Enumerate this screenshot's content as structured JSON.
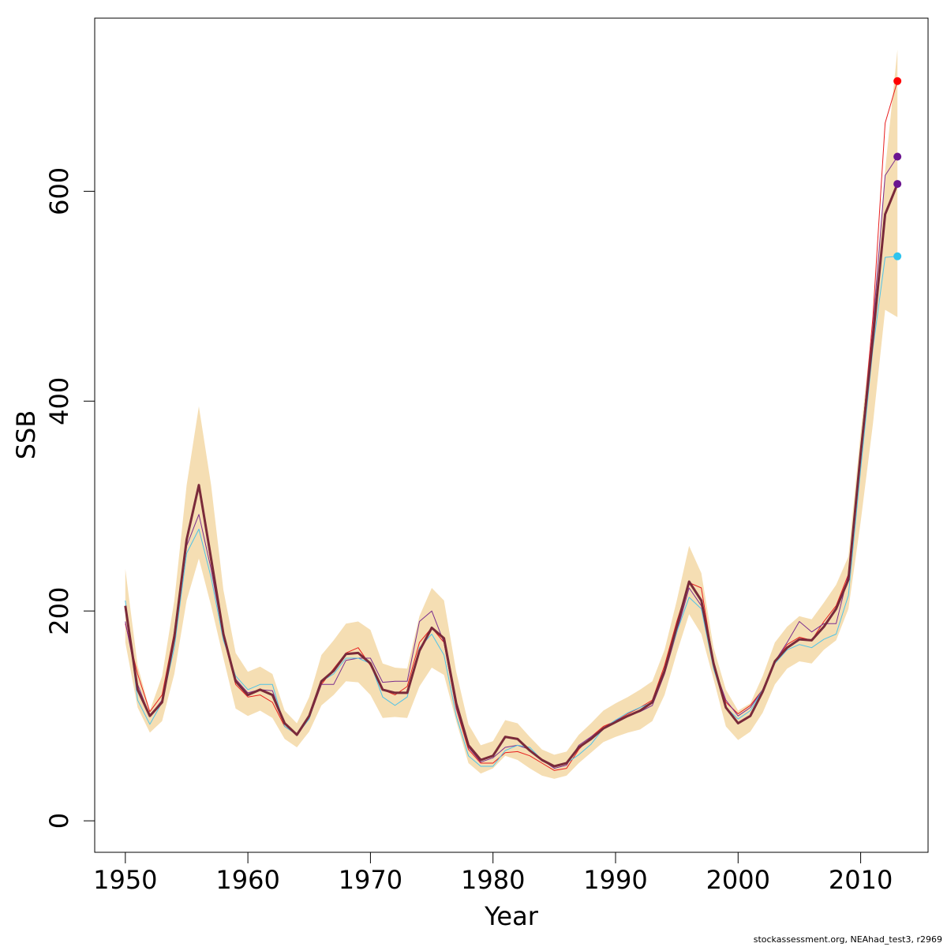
{
  "chart_data": {
    "type": "line",
    "xlabel": "Year",
    "ylabel": "SSB",
    "xlim": [
      1947.5,
      2015.5
    ],
    "ylim": [
      -30,
      765
    ],
    "x_ticks": [
      1950,
      1960,
      1970,
      1980,
      1990,
      2000,
      2010
    ],
    "y_ticks": [
      0,
      200,
      400,
      600
    ],
    "band_color": "#F5DEB3",
    "x": [
      1950,
      1951,
      1952,
      1953,
      1954,
      1955,
      1956,
      1957,
      1958,
      1959,
      1960,
      1961,
      1962,
      1963,
      1964,
      1965,
      1966,
      1967,
      1968,
      1969,
      1970,
      1971,
      1972,
      1973,
      1974,
      1975,
      1976,
      1977,
      1978,
      1979,
      1980,
      1981,
      1982,
      1983,
      1984,
      1985,
      1986,
      1987,
      1988,
      1989,
      1990,
      1991,
      1992,
      1993,
      1994,
      1995,
      1996,
      1997,
      1998,
      1999,
      2000,
      2001,
      2002,
      2003,
      2004,
      2005,
      2006,
      2007,
      2008,
      2009,
      2010,
      2011,
      2012,
      2013
    ],
    "band": {
      "lower": [
        170,
        108,
        84,
        95,
        140,
        210,
        250,
        205,
        155,
        107,
        100,
        105,
        98,
        78,
        70,
        85,
        110,
        120,
        133,
        132,
        120,
        98,
        99,
        98,
        128,
        146,
        139,
        95,
        55,
        45,
        50,
        62,
        58,
        50,
        43,
        40,
        43,
        55,
        65,
        75,
        80,
        84,
        87,
        95,
        120,
        160,
        197,
        178,
        135,
        90,
        77,
        85,
        103,
        130,
        145,
        152,
        150,
        163,
        172,
        202,
        285,
        378,
        487,
        480
      ],
      "upper": [
        240,
        148,
        105,
        138,
        210,
        320,
        395,
        320,
        220,
        160,
        142,
        147,
        140,
        105,
        93,
        118,
        158,
        172,
        188,
        190,
        182,
        150,
        146,
        145,
        195,
        222,
        210,
        142,
        92,
        72,
        76,
        96,
        93,
        80,
        68,
        63,
        66,
        82,
        93,
        105,
        112,
        118,
        125,
        133,
        163,
        210,
        262,
        236,
        165,
        125,
        105,
        112,
        138,
        170,
        185,
        195,
        192,
        208,
        225,
        252,
        370,
        478,
        620,
        735
      ]
    },
    "series": [
      {
        "color": "#7A2A3A",
        "role": "base",
        "values": [
          205,
          125,
          100,
          113,
          175,
          268,
          320,
          250,
          178,
          133,
          120,
          125,
          120,
          93,
          82,
          100,
          133,
          143,
          159,
          160,
          150,
          125,
          122,
          122,
          162,
          184,
          174,
          112,
          72,
          58,
          62,
          80,
          78,
          67,
          58,
          52,
          55,
          70,
          78,
          88,
          94,
          100,
          105,
          113,
          143,
          185,
          228,
          210,
          150,
          108,
          93,
          100,
          123,
          152,
          165,
          173,
          172,
          185,
          202,
          230,
          350,
          460,
          578,
          607
        ]
      },
      {
        "color": "#E81E1E",
        "values": [
          188,
          140,
          104,
          120,
          180,
          270,
          320,
          245,
          175,
          130,
          118,
          120,
          113,
          90,
          82,
          98,
          130,
          145,
          160,
          165,
          148,
          125,
          120,
          128,
          170,
          184,
          170,
          107,
          68,
          55,
          55,
          65,
          66,
          62,
          55,
          48,
          50,
          68,
          80,
          90,
          95,
          102,
          108,
          115,
          148,
          190,
          227,
          222,
          150,
          113,
          102,
          110,
          125,
          152,
          168,
          175,
          172,
          190,
          205,
          235,
          350,
          480,
          665,
          705
        ]
      },
      {
        "color": "#7B2D8E",
        "values": [
          190,
          130,
          100,
          115,
          172,
          262,
          292,
          240,
          175,
          135,
          122,
          125,
          124,
          92,
          82,
          98,
          130,
          130,
          153,
          155,
          155,
          132,
          133,
          133,
          190,
          200,
          170,
          108,
          70,
          56,
          60,
          70,
          72,
          68,
          58,
          50,
          53,
          72,
          80,
          88,
          96,
          100,
          104,
          110,
          140,
          180,
          222,
          205,
          148,
          115,
          100,
          108,
          125,
          152,
          170,
          190,
          180,
          188,
          188,
          235,
          355,
          470,
          615,
          633
        ]
      },
      {
        "color": "#4FC3E8",
        "values": [
          210,
          115,
          92,
          113,
          165,
          255,
          278,
          232,
          172,
          138,
          125,
          130,
          130,
          90,
          82,
          97,
          133,
          140,
          155,
          155,
          150,
          118,
          110,
          118,
          165,
          178,
          158,
          100,
          62,
          52,
          52,
          67,
          72,
          70,
          58,
          52,
          55,
          63,
          73,
          88,
          96,
          103,
          108,
          113,
          143,
          180,
          213,
          202,
          145,
          108,
          97,
          105,
          125,
          150,
          163,
          168,
          165,
          173,
          178,
          215,
          335,
          450,
          537,
          538
        ]
      }
    ],
    "end_points": [
      {
        "value": 705,
        "color": "#FF0000"
      },
      {
        "value": 633,
        "color": "#6B1590"
      },
      {
        "value": 607,
        "color": "#6B1590"
      },
      {
        "value": 538,
        "color": "#2EC4EE"
      }
    ]
  },
  "footer": "stockassessment.org, NEAhad_test3, r2969"
}
